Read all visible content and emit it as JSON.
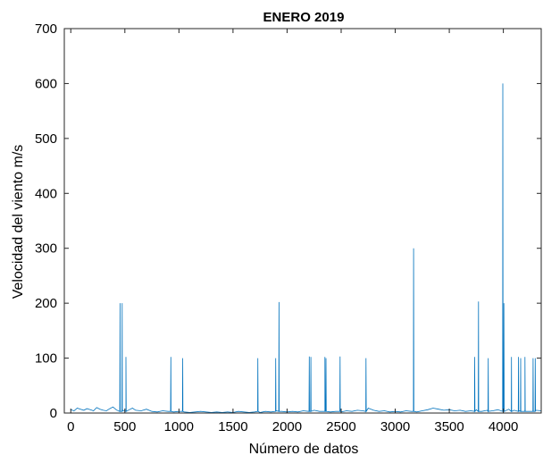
{
  "chart_data": {
    "type": "line",
    "title": "ENERO 2019",
    "xlabel": "Número de datos",
    "ylabel": "Velocidad del viento m/s",
    "xlim": [
      -60,
      4350
    ],
    "ylim": [
      0,
      700
    ],
    "xticks": [
      0,
      500,
      1000,
      1500,
      2000,
      2500,
      3000,
      3500,
      4000
    ],
    "yticks": [
      0,
      100,
      200,
      300,
      400,
      500,
      600,
      700
    ],
    "grid": false,
    "legend": "none",
    "colors": {
      "line": "#0072BD",
      "axes": "#262626",
      "text": "#000000"
    },
    "series": [
      {
        "baseline": [
          [
            0,
            6
          ],
          [
            30,
            4
          ],
          [
            60,
            9
          ],
          [
            90,
            7
          ],
          [
            120,
            5
          ],
          [
            150,
            8
          ],
          [
            180,
            6
          ],
          [
            210,
            4
          ],
          [
            240,
            10
          ],
          [
            270,
            7
          ],
          [
            300,
            5
          ],
          [
            330,
            4
          ],
          [
            360,
            8
          ],
          [
            390,
            11
          ],
          [
            420,
            6
          ],
          [
            450,
            3
          ],
          [
            480,
            5
          ],
          [
            510,
            4
          ],
          [
            540,
            6
          ],
          [
            570,
            9
          ],
          [
            600,
            5
          ],
          [
            650,
            4
          ],
          [
            700,
            7
          ],
          [
            750,
            3
          ],
          [
            800,
            2
          ],
          [
            850,
            4
          ],
          [
            900,
            3
          ],
          [
            950,
            2
          ],
          [
            1000,
            3
          ],
          [
            1050,
            2
          ],
          [
            1100,
            1
          ],
          [
            1150,
            2
          ],
          [
            1200,
            3
          ],
          [
            1250,
            2
          ],
          [
            1300,
            1
          ],
          [
            1350,
            2
          ],
          [
            1400,
            1
          ],
          [
            1450,
            2
          ],
          [
            1500,
            1
          ],
          [
            1550,
            3
          ],
          [
            1600,
            2
          ],
          [
            1650,
            1
          ],
          [
            1700,
            2
          ],
          [
            1750,
            1
          ],
          [
            1800,
            3
          ],
          [
            1850,
            2
          ],
          [
            1900,
            4
          ],
          [
            1950,
            3
          ],
          [
            2000,
            2
          ],
          [
            2050,
            3
          ],
          [
            2100,
            2
          ],
          [
            2150,
            4
          ],
          [
            2200,
            3
          ],
          [
            2250,
            5
          ],
          [
            2300,
            3
          ],
          [
            2350,
            4
          ],
          [
            2400,
            2
          ],
          [
            2450,
            3
          ],
          [
            2500,
            2
          ],
          [
            2550,
            4
          ],
          [
            2600,
            3
          ],
          [
            2650,
            5
          ],
          [
            2700,
            4
          ],
          [
            2750,
            9
          ],
          [
            2800,
            5
          ],
          [
            2850,
            3
          ],
          [
            2900,
            4
          ],
          [
            2950,
            2
          ],
          [
            3000,
            3
          ],
          [
            3050,
            2
          ],
          [
            3100,
            4
          ],
          [
            3150,
            3
          ],
          [
            3200,
            2
          ],
          [
            3250,
            4
          ],
          [
            3300,
            6
          ],
          [
            3350,
            9
          ],
          [
            3400,
            7
          ],
          [
            3450,
            5
          ],
          [
            3500,
            6
          ],
          [
            3550,
            4
          ],
          [
            3600,
            5
          ],
          [
            3650,
            3
          ],
          [
            3700,
            4
          ],
          [
            3750,
            6
          ],
          [
            3800,
            3
          ],
          [
            3850,
            5
          ],
          [
            3900,
            4
          ],
          [
            3950,
            6
          ],
          [
            4000,
            5
          ],
          [
            4050,
            7
          ],
          [
            4100,
            5
          ],
          [
            4150,
            4
          ],
          [
            4200,
            6
          ],
          [
            4250,
            3
          ],
          [
            4300,
            5
          ],
          [
            4350,
            4
          ]
        ],
        "spikes": [
          [
            455,
            200
          ],
          [
            475,
            200
          ],
          [
            510,
            102
          ],
          [
            925,
            102
          ],
          [
            1035,
            100
          ],
          [
            1730,
            100
          ],
          [
            1895,
            100
          ],
          [
            1925,
            202
          ],
          [
            2205,
            103
          ],
          [
            2220,
            102
          ],
          [
            2350,
            102
          ],
          [
            2360,
            100
          ],
          [
            2490,
            103
          ],
          [
            2730,
            100
          ],
          [
            3170,
            300
          ],
          [
            3735,
            102
          ],
          [
            3770,
            203
          ],
          [
            3860,
            100
          ],
          [
            3995,
            600
          ],
          [
            4005,
            200
          ],
          [
            4075,
            102
          ],
          [
            4140,
            102
          ],
          [
            4160,
            100
          ],
          [
            4200,
            102
          ],
          [
            4275,
            100
          ],
          [
            4295,
            100
          ]
        ]
      }
    ]
  }
}
